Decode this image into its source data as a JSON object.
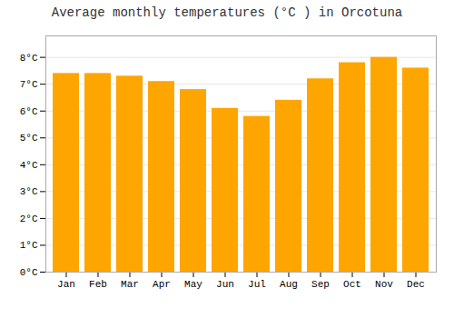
{
  "chart_data": {
    "type": "bar",
    "title": "Average monthly temperatures (°C ) in Orcotuna",
    "categories": [
      "Jan",
      "Feb",
      "Mar",
      "Apr",
      "May",
      "Jun",
      "Jul",
      "Aug",
      "Sep",
      "Oct",
      "Nov",
      "Dec"
    ],
    "values": [
      7.4,
      7.4,
      7.3,
      7.1,
      6.8,
      6.1,
      5.8,
      6.4,
      7.2,
      7.8,
      8.0,
      7.6
    ],
    "color": "#FFA500",
    "ylim": [
      0,
      8.8
    ],
    "yticks": [
      {
        "value": 0,
        "label": "0°C"
      },
      {
        "value": 1,
        "label": "1°C"
      },
      {
        "value": 2,
        "label": "2°C"
      },
      {
        "value": 3,
        "label": "3°C"
      },
      {
        "value": 4,
        "label": "4°C"
      },
      {
        "value": 5,
        "label": "5°C"
      },
      {
        "value": 6,
        "label": "6°C"
      },
      {
        "value": 7,
        "label": "7°C"
      },
      {
        "value": 8,
        "label": "8°C"
      }
    ],
    "grid": true
  }
}
